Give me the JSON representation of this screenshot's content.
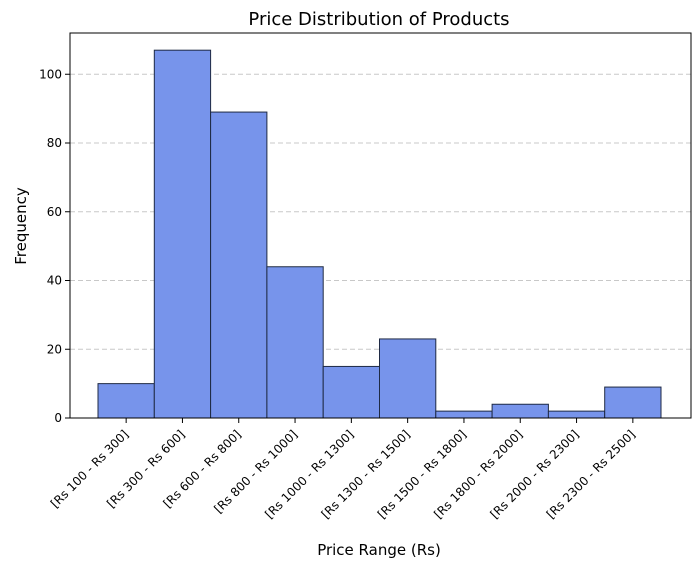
{
  "chart_data": {
    "type": "bar",
    "title": "Price Distribution of Products",
    "xlabel": "Price Range (Rs)",
    "ylabel": "Frequency",
    "categories": [
      "[Rs 100 - Rs 300]",
      "[Rs 300 - Rs 600]",
      "[Rs 600 - Rs 800]",
      "[Rs 800 - Rs 1000]",
      "[Rs 1000 - Rs 1300]",
      "[Rs 1300 - Rs 1500]",
      "[Rs 1500 - Rs 1800]",
      "[Rs 1800 - Rs 2000]",
      "[Rs 2000 - Rs 2300]",
      "[Rs 2300 - Rs 2500]"
    ],
    "values": [
      10,
      107,
      89,
      44,
      15,
      23,
      2,
      4,
      2,
      9
    ],
    "ylim": [
      0,
      112
    ],
    "yticks": [
      0,
      20,
      40,
      60,
      80,
      100
    ],
    "grid": "y-dashed",
    "bar_color": "#7794eb",
    "edge_color": "#1f2a44",
    "grid_color": "#c8c8c8"
  }
}
